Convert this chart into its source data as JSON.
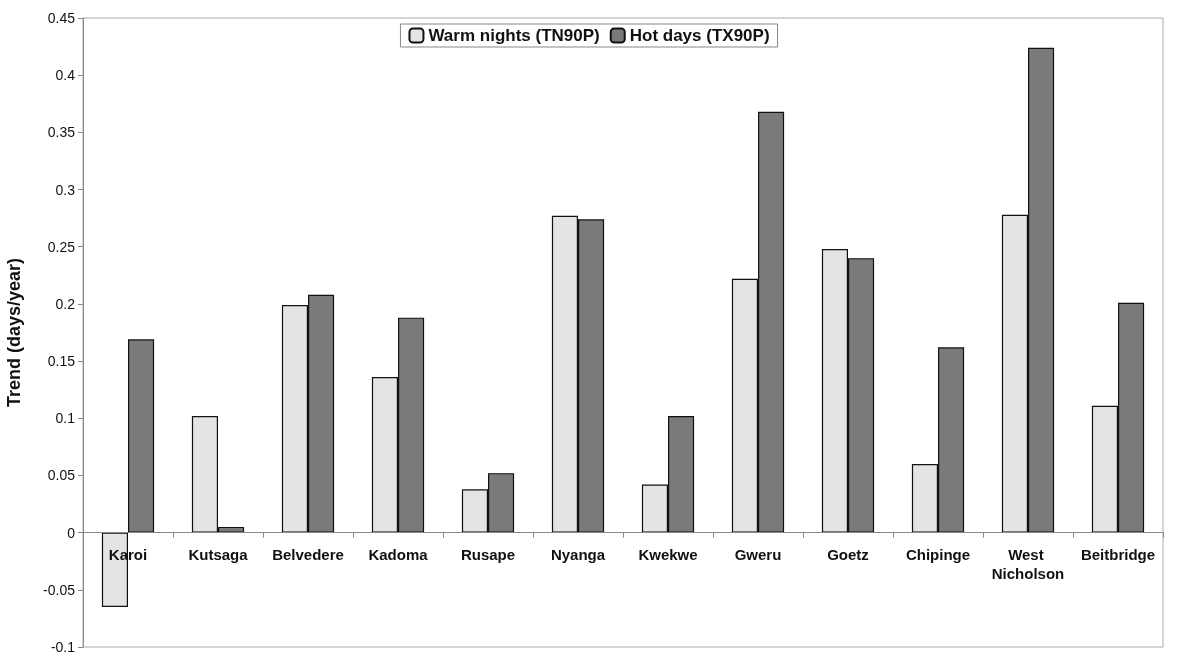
{
  "chart_data": {
    "type": "bar",
    "ylabel": "Trend (days/year)",
    "categories": [
      "Karoi",
      "Kutsaga",
      "Belvedere",
      "Kadoma",
      "Rusape",
      "Nyanga",
      "Kwekwe",
      "Gweru",
      "Goetz",
      "Chipinge",
      "West Nicholson",
      "Beitbridge"
    ],
    "series": [
      {
        "name": "Warm nights (TN90P)",
        "color": "#e4e4e4",
        "values": [
          -0.065,
          0.102,
          0.199,
          0.136,
          0.038,
          0.277,
          0.042,
          0.222,
          0.248,
          0.06,
          0.278,
          0.111
        ]
      },
      {
        "name": "Hot days (TX90P)",
        "color": "#7a7a7a",
        "values": [
          0.169,
          0.005,
          0.208,
          0.188,
          0.052,
          0.274,
          0.102,
          0.368,
          0.24,
          0.162,
          0.424,
          0.201
        ]
      }
    ],
    "ylim": [
      -0.1,
      0.45
    ],
    "yticks": [
      -0.1,
      -0.05,
      0,
      0.05,
      0.1,
      0.15,
      0.2,
      0.25,
      0.3,
      0.35,
      0.4,
      0.45
    ],
    "legend": "top"
  }
}
